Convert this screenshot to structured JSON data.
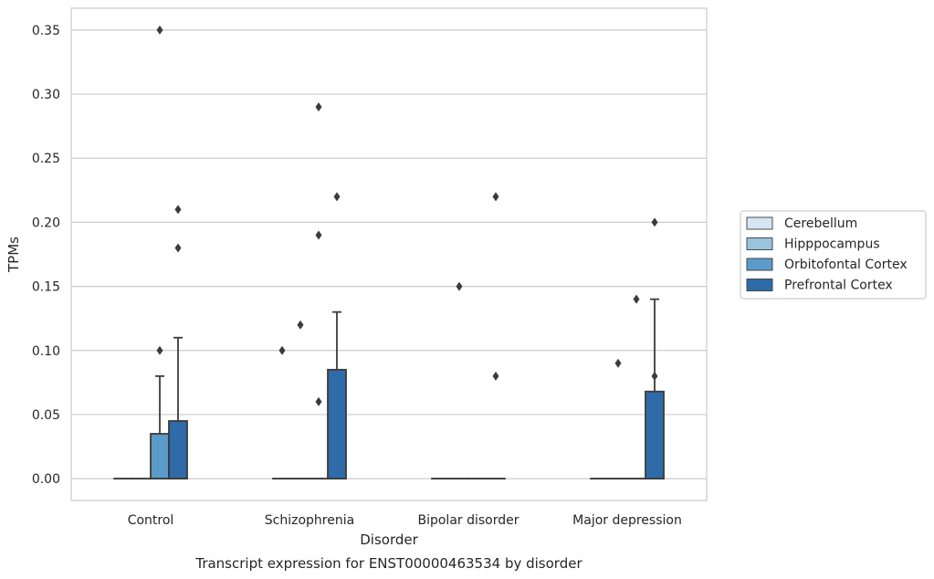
{
  "chart_data": {
    "type": "box",
    "caption": "Transcript expression for ENST00000463534 by disorder",
    "xlabel": "Disorder",
    "ylabel": "TPMs",
    "ylim": [
      -0.017,
      0.367
    ],
    "yticks": [
      0.0,
      0.05,
      0.1,
      0.15,
      0.2,
      0.25,
      0.3,
      0.35
    ],
    "ytick_labels": [
      "0.00",
      "0.05",
      "0.10",
      "0.15",
      "0.20",
      "0.25",
      "0.30",
      "0.35"
    ],
    "grid": true,
    "legend_position": "right",
    "categories": [
      "Control",
      "Schizophrenia",
      "Bipolar disorder",
      "Major depression"
    ],
    "series": [
      {
        "name": "Cerebellum",
        "color": "#d6e5f4",
        "boxes": [
          {
            "q1": 0,
            "median": 0,
            "q3": 0,
            "whisker_low": 0,
            "whisker_high": 0,
            "outliers": []
          },
          {
            "q1": 0,
            "median": 0,
            "q3": 0,
            "whisker_low": 0,
            "whisker_high": 0,
            "outliers": [
              0.1
            ]
          },
          {
            "q1": 0,
            "median": 0,
            "q3": 0,
            "whisker_low": 0,
            "whisker_high": 0,
            "outliers": []
          },
          {
            "q1": 0,
            "median": 0,
            "q3": 0,
            "whisker_low": 0,
            "whisker_high": 0,
            "outliers": []
          }
        ]
      },
      {
        "name": "Hipppocampus",
        "color": "#9bc3dd",
        "boxes": [
          {
            "q1": 0,
            "median": 0,
            "q3": 0,
            "whisker_low": 0,
            "whisker_high": 0,
            "outliers": []
          },
          {
            "q1": 0,
            "median": 0,
            "q3": 0,
            "whisker_low": 0,
            "whisker_high": 0,
            "outliers": [
              0.12
            ]
          },
          {
            "q1": 0,
            "median": 0,
            "q3": 0,
            "whisker_low": 0,
            "whisker_high": 0,
            "outliers": [
              0.15
            ]
          },
          {
            "q1": 0,
            "median": 0,
            "q3": 0,
            "whisker_low": 0,
            "whisker_high": 0,
            "outliers": [
              0.09
            ]
          }
        ]
      },
      {
        "name": "Orbitofontal Cortex",
        "color": "#5b9bc9",
        "boxes": [
          {
            "q1": 0,
            "median": 0,
            "q3": 0.035,
            "whisker_low": 0,
            "whisker_high": 0.08,
            "outliers": [
              0.1,
              0.35
            ]
          },
          {
            "q1": 0,
            "median": 0,
            "q3": 0,
            "whisker_low": 0,
            "whisker_high": 0,
            "outliers": [
              0.06,
              0.19,
              0.29
            ]
          },
          {
            "q1": 0,
            "median": 0,
            "q3": 0,
            "whisker_low": 0,
            "whisker_high": 0,
            "outliers": []
          },
          {
            "q1": 0,
            "median": 0,
            "q3": 0,
            "whisker_low": 0,
            "whisker_high": 0,
            "outliers": [
              0.14
            ]
          }
        ]
      },
      {
        "name": "Prefrontal Cortex",
        "color": "#2f6ba8",
        "boxes": [
          {
            "q1": 0,
            "median": 0,
            "q3": 0.045,
            "whisker_low": 0,
            "whisker_high": 0.11,
            "outliers": [
              0.18,
              0.21
            ]
          },
          {
            "q1": 0,
            "median": 0,
            "q3": 0.085,
            "whisker_low": 0,
            "whisker_high": 0.13,
            "outliers": [
              0.22
            ]
          },
          {
            "q1": 0,
            "median": 0,
            "q3": 0,
            "whisker_low": 0,
            "whisker_high": 0,
            "outliers": [
              0.08,
              0.22
            ]
          },
          {
            "q1": 0,
            "median": 0,
            "q3": 0.068,
            "whisker_low": 0,
            "whisker_high": 0.14,
            "outliers": [
              0.08,
              0.2
            ]
          }
        ]
      }
    ]
  }
}
